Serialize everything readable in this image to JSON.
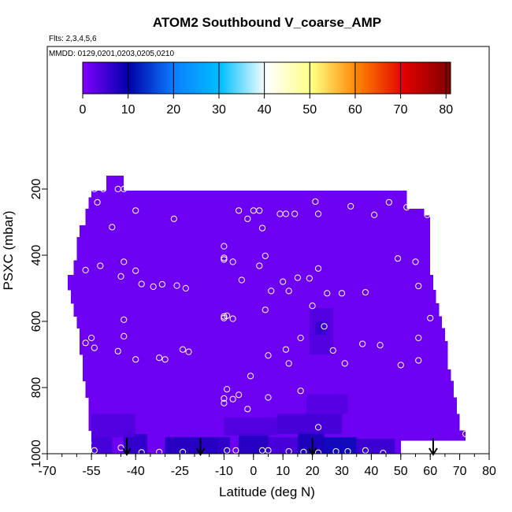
{
  "chart_data": {
    "type": "heatmap",
    "title": "ATOM2 Southbound V_coarse_AMP",
    "subtitle_flights": "Flts: 2,3,4,5,6",
    "subtitle_dates": "MMDD: 0129,0201,0203,0205,0210",
    "xlabel": "Latitude (deg N)",
    "ylabel": "PSXC (mbar)",
    "xlim": [
      -70,
      80
    ],
    "ylim": [
      1000,
      100
    ],
    "x_ticks": [
      -70,
      -55,
      -40,
      -25,
      -10,
      0,
      10,
      20,
      30,
      40,
      50,
      60,
      70,
      80
    ],
    "x_tick_labels": [
      "-70",
      "-55",
      "-40",
      "-25",
      "-10",
      "0",
      "10",
      "20",
      "30",
      "40",
      "50",
      "60",
      "70",
      "80"
    ],
    "y_ticks": [
      200,
      400,
      600,
      800,
      1000
    ],
    "y_tick_labels": [
      "200",
      "400",
      "600",
      "800",
      "1000"
    ],
    "colorbar": {
      "range": [
        0,
        81
      ],
      "ticks": [
        0,
        10,
        20,
        30,
        40,
        50,
        60,
        70,
        80
      ],
      "tick_labels": [
        "0",
        "10",
        "20",
        "30",
        "40",
        "50",
        "60",
        "70",
        "80"
      ],
      "colors": [
        "#8000ff",
        "#0000aa",
        "#0b7fff",
        "#00c0ff",
        "#ffffff",
        "#ffff80",
        "#ff8000",
        "#e00000",
        "#800000"
      ]
    },
    "background_value": 1.5,
    "regions": [
      {
        "x": [
          -55,
          -48
        ],
        "y": [
          950,
          1000
        ],
        "value": 5
      },
      {
        "x": [
          -44,
          -36
        ],
        "y": [
          940,
          1000
        ],
        "value": 7
      },
      {
        "x": [
          -30,
          -12
        ],
        "y": [
          950,
          1000
        ],
        "value": 8
      },
      {
        "x": [
          -20,
          -8
        ],
        "y": [
          950,
          1000
        ],
        "value": 7
      },
      {
        "x": [
          -5,
          5
        ],
        "y": [
          940,
          1000
        ],
        "value": 8
      },
      {
        "x": [
          5,
          15
        ],
        "y": [
          950,
          1000
        ],
        "value": 5
      },
      {
        "x": [
          15,
          24
        ],
        "y": [
          935,
          1000
        ],
        "value": 9
      },
      {
        "x": [
          24,
          35
        ],
        "y": [
          950,
          1000
        ],
        "value": 11
      },
      {
        "x": [
          35,
          48
        ],
        "y": [
          955,
          1000
        ],
        "value": 6
      },
      {
        "x": [
          -55,
          -40
        ],
        "y": [
          880,
          950
        ],
        "value": 4
      },
      {
        "x": [
          -10,
          8
        ],
        "y": [
          890,
          945
        ],
        "value": 4
      },
      {
        "x": [
          8,
          30
        ],
        "y": [
          880,
          940
        ],
        "value": 5
      },
      {
        "x": [
          18,
          32
        ],
        "y": [
          820,
          880
        ],
        "value": 3.5
      },
      {
        "x": [
          19,
          27
        ],
        "y": [
          560,
          700
        ],
        "value": 4
      },
      {
        "x": [
          21,
          25
        ],
        "y": [
          600,
          640
        ],
        "value": 6
      }
    ],
    "points": [
      {
        "x": -54,
        "y": 200
      },
      {
        "x": -51,
        "y": 200
      },
      {
        "x": -46,
        "y": 200
      },
      {
        "x": -44,
        "y": 200
      },
      {
        "x": -53,
        "y": 240
      },
      {
        "x": -40,
        "y": 265
      },
      {
        "x": -27,
        "y": 290
      },
      {
        "x": -48,
        "y": 315
      },
      {
        "x": -5,
        "y": 265
      },
      {
        "x": -2,
        "y": 290
      },
      {
        "x": 0,
        "y": 265
      },
      {
        "x": 2,
        "y": 265
      },
      {
        "x": 3,
        "y": 318
      },
      {
        "x": 9,
        "y": 275
      },
      {
        "x": 11,
        "y": 275
      },
      {
        "x": 14,
        "y": 275
      },
      {
        "x": 21,
        "y": 238
      },
      {
        "x": 22,
        "y": 275
      },
      {
        "x": 33,
        "y": 252
      },
      {
        "x": 41,
        "y": 278
      },
      {
        "x": 46,
        "y": 240
      },
      {
        "x": 52,
        "y": 255
      },
      {
        "x": 59,
        "y": 278
      },
      {
        "x": -10,
        "y": 373
      },
      {
        "x": -10,
        "y": 408
      },
      {
        "x": -10,
        "y": 413
      },
      {
        "x": -7,
        "y": 420
      },
      {
        "x": 4,
        "y": 402
      },
      {
        "x": -4,
        "y": 475
      },
      {
        "x": 2,
        "y": 432
      },
      {
        "x": 6,
        "y": 508
      },
      {
        "x": 10,
        "y": 480
      },
      {
        "x": 12,
        "y": 508
      },
      {
        "x": 15,
        "y": 468
      },
      {
        "x": 22,
        "y": 440
      },
      {
        "x": 19,
        "y": 470
      },
      {
        "x": 25,
        "y": 515
      },
      {
        "x": 30,
        "y": 515
      },
      {
        "x": 38,
        "y": 512
      },
      {
        "x": 49,
        "y": 410
      },
      {
        "x": 55,
        "y": 420
      },
      {
        "x": 56,
        "y": 493
      },
      {
        "x": -57,
        "y": 445
      },
      {
        "x": -52,
        "y": 432
      },
      {
        "x": -44,
        "y": 420
      },
      {
        "x": -45,
        "y": 464
      },
      {
        "x": -40,
        "y": 447
      },
      {
        "x": -38,
        "y": 487
      },
      {
        "x": -34,
        "y": 495
      },
      {
        "x": -31,
        "y": 488
      },
      {
        "x": -26,
        "y": 492
      },
      {
        "x": -23,
        "y": 500
      },
      {
        "x": 4,
        "y": 565
      },
      {
        "x": -10,
        "y": 590
      },
      {
        "x": -10,
        "y": 585
      },
      {
        "x": -9,
        "y": 583
      },
      {
        "x": -7,
        "y": 592
      },
      {
        "x": -44,
        "y": 595
      },
      {
        "x": 20,
        "y": 553
      },
      {
        "x": 24,
        "y": 615
      },
      {
        "x": 60,
        "y": 590
      },
      {
        "x": -57,
        "y": 665
      },
      {
        "x": -55,
        "y": 650
      },
      {
        "x": -54,
        "y": 680
      },
      {
        "x": -46,
        "y": 690
      },
      {
        "x": -44,
        "y": 645
      },
      {
        "x": -40,
        "y": 715
      },
      {
        "x": -32,
        "y": 710
      },
      {
        "x": -30,
        "y": 715
      },
      {
        "x": -24,
        "y": 685
      },
      {
        "x": -22,
        "y": 692
      },
      {
        "x": 5,
        "y": 703
      },
      {
        "x": 11,
        "y": 685
      },
      {
        "x": 12,
        "y": 727
      },
      {
        "x": 16,
        "y": 650
      },
      {
        "x": 27,
        "y": 688
      },
      {
        "x": 31,
        "y": 727
      },
      {
        "x": 37,
        "y": 668
      },
      {
        "x": 43,
        "y": 672
      },
      {
        "x": 50,
        "y": 732
      },
      {
        "x": 56,
        "y": 650
      },
      {
        "x": 56,
        "y": 718
      },
      {
        "x": -1,
        "y": 765
      },
      {
        "x": -9,
        "y": 805
      },
      {
        "x": -10,
        "y": 833
      },
      {
        "x": -10,
        "y": 847
      },
      {
        "x": -7,
        "y": 835
      },
      {
        "x": -5,
        "y": 822
      },
      {
        "x": -2,
        "y": 865
      },
      {
        "x": 5,
        "y": 830
      },
      {
        "x": 16,
        "y": 810
      },
      {
        "x": 22,
        "y": 920
      },
      {
        "x": 72,
        "y": 940
      },
      {
        "x": -56,
        "y": 968
      },
      {
        "x": -54,
        "y": 990
      },
      {
        "x": -45,
        "y": 982
      },
      {
        "x": -38,
        "y": 996
      },
      {
        "x": -32,
        "y": 995
      },
      {
        "x": -24,
        "y": 995
      },
      {
        "x": -9,
        "y": 990
      },
      {
        "x": -6,
        "y": 990
      },
      {
        "x": 3,
        "y": 990
      },
      {
        "x": 5,
        "y": 990
      },
      {
        "x": 12,
        "y": 993
      },
      {
        "x": 17,
        "y": 995
      },
      {
        "x": 22,
        "y": 997
      },
      {
        "x": 28,
        "y": 993
      },
      {
        "x": 32,
        "y": 993
      },
      {
        "x": 38,
        "y": 990
      },
      {
        "x": 44,
        "y": 998
      }
    ],
    "coverage_rows": [
      {
        "y": [
          160,
          205
        ],
        "x": [
          -50,
          -44
        ]
      },
      {
        "y": [
          205,
          225
        ],
        "x": [
          -55,
          52
        ]
      },
      {
        "y": [
          225,
          260
        ],
        "x": [
          -56,
          52
        ]
      },
      {
        "y": [
          260,
          280
        ],
        "x": [
          -57,
          58
        ]
      },
      {
        "y": [
          280,
          310
        ],
        "x": [
          -57,
          60
        ]
      },
      {
        "y": [
          310,
          345
        ],
        "x": [
          -59,
          60
        ]
      },
      {
        "y": [
          345,
          415
        ],
        "x": [
          -60,
          60
        ]
      },
      {
        "y": [
          415,
          460
        ],
        "x": [
          -61,
          60
        ]
      },
      {
        "y": [
          460,
          505
        ],
        "x": [
          -63,
          61
        ]
      },
      {
        "y": [
          505,
          545
        ],
        "x": [
          -62,
          62
        ]
      },
      {
        "y": [
          545,
          585
        ],
        "x": [
          -61,
          63
        ]
      },
      {
        "y": [
          585,
          620
        ],
        "x": [
          -60,
          64
        ]
      },
      {
        "y": [
          620,
          660
        ],
        "x": [
          -59,
          65
        ]
      },
      {
        "y": [
          660,
          700
        ],
        "x": [
          -59,
          66
        ]
      },
      {
        "y": [
          700,
          745
        ],
        "x": [
          -58,
          66
        ]
      },
      {
        "y": [
          745,
          780
        ],
        "x": [
          -58,
          67
        ]
      },
      {
        "y": [
          780,
          830
        ],
        "x": [
          -57,
          68
        ]
      },
      {
        "y": [
          830,
          880
        ],
        "x": [
          -56,
          69
        ]
      },
      {
        "y": [
          880,
          930
        ],
        "x": [
          -56,
          70
        ]
      },
      {
        "y": [
          930,
          960
        ],
        "x": [
          -55,
          72
        ]
      },
      {
        "y": [
          960,
          1000
        ],
        "x": [
          -55,
          50
        ]
      }
    ],
    "arrow_latitudes": [
      -43,
      -18,
      20,
      61
    ]
  }
}
